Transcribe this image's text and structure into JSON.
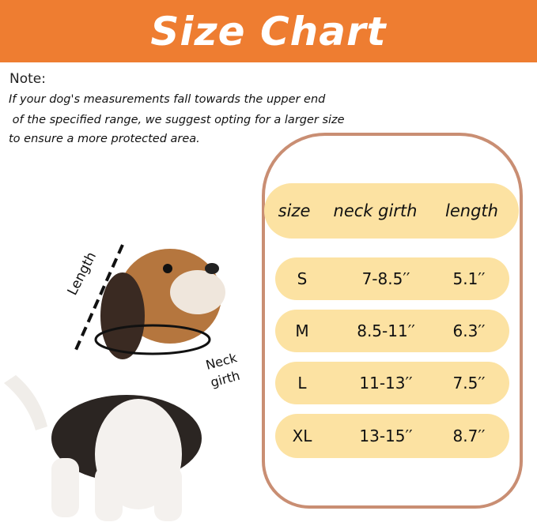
{
  "title": "Size Chart",
  "note": {
    "heading": "Note:",
    "lines": [
      "If your dog's measurements fall towards the upper end",
      " of the specified range, we suggest opting for a larger size",
      "to ensure a more protected area."
    ]
  },
  "table": {
    "headers": [
      "size",
      "neck girth",
      "length"
    ],
    "rows": [
      {
        "size": "S",
        "neck": "7-8.5′′",
        "length": "5.1′′"
      },
      {
        "size": "M",
        "neck": "8.5-11′′",
        "length": "6.3′′"
      },
      {
        "size": "L",
        "neck": "11-13′′",
        "length": "7.5′′"
      },
      {
        "size": "XL",
        "neck": "13-15′′",
        "length": "8.7′′"
      }
    ]
  },
  "illustration": {
    "length_label": "Length",
    "neck_label_1": "Neck",
    "neck_label_2": "girth"
  },
  "colors": {
    "banner": "#EE7D31",
    "pill": "#FCE2A2",
    "frame": "#C98E73"
  }
}
